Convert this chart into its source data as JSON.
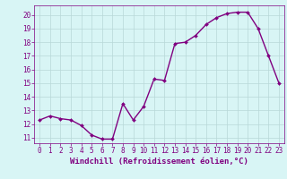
{
  "x": [
    0,
    1,
    2,
    3,
    4,
    5,
    6,
    7,
    8,
    9,
    10,
    11,
    12,
    13,
    14,
    15,
    16,
    17,
    18,
    19,
    20,
    21,
    22,
    23
  ],
  "y": [
    12.3,
    12.6,
    12.4,
    12.3,
    11.9,
    11.2,
    10.9,
    10.9,
    13.5,
    12.3,
    13.3,
    15.3,
    15.2,
    17.9,
    18.0,
    18.5,
    19.3,
    19.8,
    20.1,
    20.2,
    20.2,
    19.0,
    17.0,
    15.0
  ],
  "line_color": "#800080",
  "marker": "D",
  "marker_size": 2,
  "bg_color": "#d8f5f5",
  "grid_color": "#b8d8d8",
  "xlabel": "Windchill (Refroidissement éolien,°C)",
  "ylabel": "",
  "ylim": [
    10.6,
    20.7
  ],
  "xlim": [
    -0.5,
    23.5
  ],
  "yticks": [
    11,
    12,
    13,
    14,
    15,
    16,
    17,
    18,
    19,
    20
  ],
  "xticks": [
    0,
    1,
    2,
    3,
    4,
    5,
    6,
    7,
    8,
    9,
    10,
    11,
    12,
    13,
    14,
    15,
    16,
    17,
    18,
    19,
    20,
    21,
    22,
    23
  ],
  "tick_fontsize": 5.5,
  "xlabel_fontsize": 6.5,
  "line_width": 1.0,
  "axis_color": "#800080"
}
